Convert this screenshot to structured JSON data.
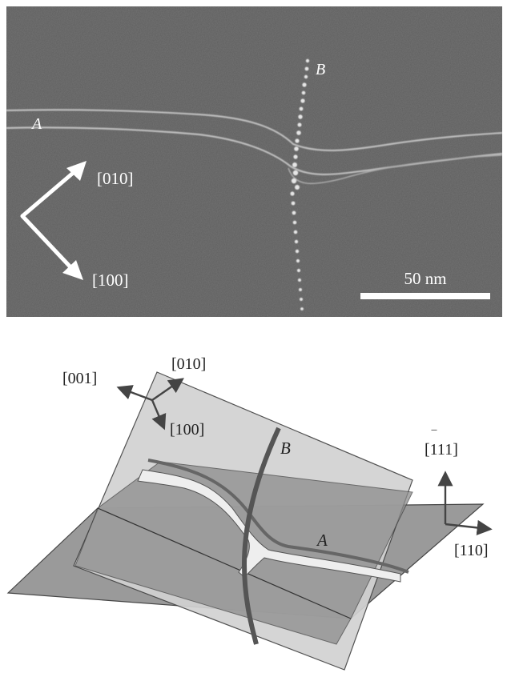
{
  "micrograph": {
    "dislocation_a_label": "A",
    "dislocation_b_label": "B",
    "direction_upper": "[010]",
    "direction_lower": "[100]",
    "scale_bar_label": "50 nm"
  },
  "schematic": {
    "axis_001": "[001]",
    "axis_010": "[010]",
    "axis_100": "[100]",
    "dislocation_b_label": "B",
    "dislocation_a_label": "A",
    "axis_111_digits": "111",
    "axis_111_bar": "‾",
    "axis_110": "[110]"
  },
  "colors": {
    "micrograph_bg": "#5d5d5d",
    "plane_light": "#cfcfcf",
    "plane_mid": "#a8a8a8",
    "plane_dark": "#8a8a8a",
    "dislocation_line": "#555555"
  }
}
